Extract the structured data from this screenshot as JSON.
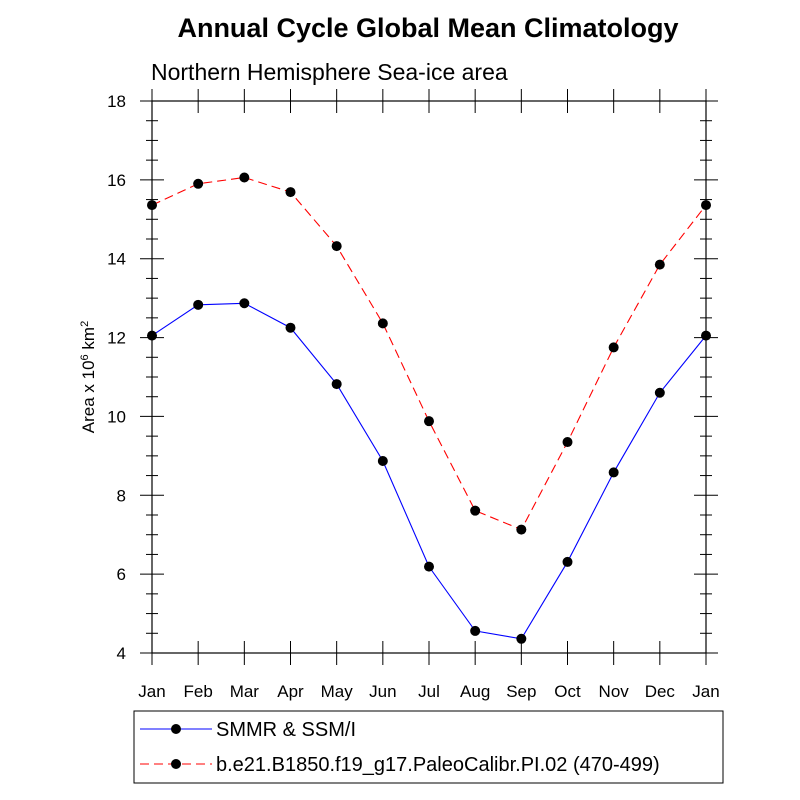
{
  "chart_data": {
    "type": "line",
    "title": "Annual Cycle Global Mean Climatology",
    "subtitle": "Northern Hemisphere Sea-ice area",
    "ylabel": {
      "prefix": "Area x 10",
      "exp1": "6",
      "mid": " km",
      "exp2": "2"
    },
    "categories": [
      "Jan",
      "Feb",
      "Mar",
      "Apr",
      "May",
      "Jun",
      "Jul",
      "Aug",
      "Sep",
      "Oct",
      "Nov",
      "Dec",
      "Jan"
    ],
    "ylim": [
      4,
      18
    ],
    "yticks": [
      4,
      6,
      8,
      10,
      12,
      14,
      16,
      18
    ],
    "series": [
      {
        "name": "SMMR & SSM/I",
        "color": "#0000ff",
        "dash": "solid",
        "values": [
          12.05,
          12.83,
          12.87,
          12.25,
          10.82,
          8.87,
          6.19,
          4.56,
          4.36,
          6.31,
          8.58,
          10.6,
          12.05
        ]
      },
      {
        "name": "b.e21.B1850.f19_g17.PaleoCalibr.PI.02 (470-499)",
        "color": "#ff0000",
        "dash": "dashed",
        "values": [
          15.36,
          15.9,
          16.06,
          15.69,
          14.32,
          12.36,
          9.88,
          7.61,
          7.13,
          9.35,
          11.75,
          13.85,
          15.36
        ]
      }
    ],
    "marker_color": "#000000",
    "legend_position": "bottom"
  }
}
